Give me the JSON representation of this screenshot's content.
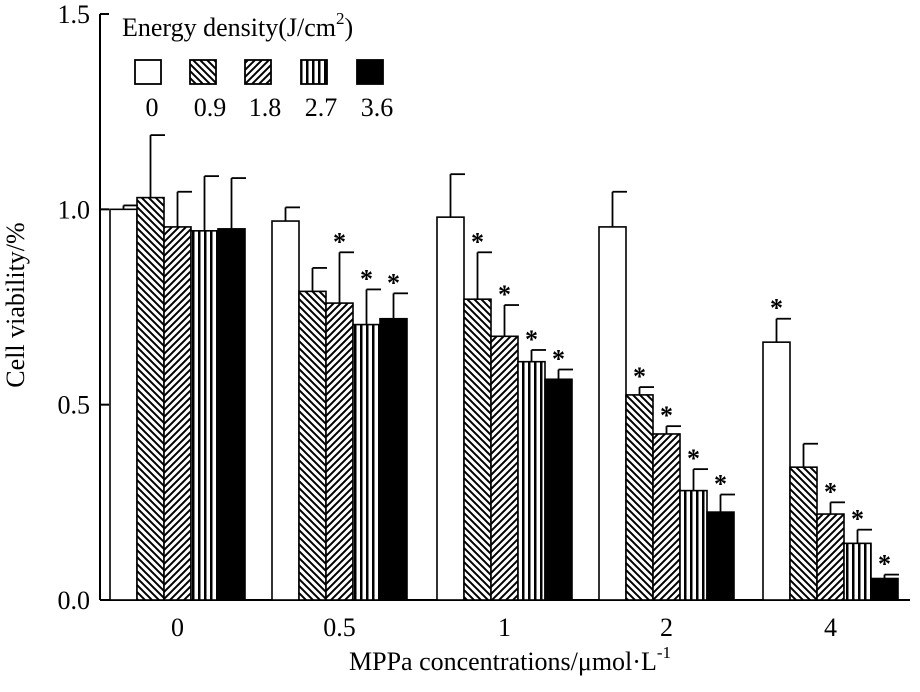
{
  "chart_data": {
    "type": "bar",
    "xlabel": "MPPa concentrations/μmol·L",
    "xlabel_superscript": "-1",
    "ylabel": "Cell viability/%",
    "ylim": [
      0,
      1.5
    ],
    "yticks": [
      0.0,
      0.5,
      1.0,
      1.5
    ],
    "ytick_labels": [
      "0.0",
      "0.5",
      "1.0",
      "1.5"
    ],
    "categories": [
      "0",
      "0.5",
      "1",
      "2",
      "4"
    ],
    "legend": {
      "title": "Energy density(J/cm",
      "title_superscript": "2",
      "title_suffix": ")",
      "position": "top-left"
    },
    "series": [
      {
        "name": "0",
        "pattern": "white",
        "values": [
          1.0,
          0.97,
          0.98,
          0.955,
          0.66
        ],
        "errors": [
          0.01,
          0.035,
          0.11,
          0.09,
          0.06
        ],
        "significant": [
          false,
          false,
          false,
          false,
          true
        ]
      },
      {
        "name": "0.9",
        "pattern": "back-hatch",
        "values": [
          1.03,
          0.79,
          0.77,
          0.525,
          0.34
        ],
        "errors": [
          0.16,
          0.06,
          0.12,
          0.02,
          0.06
        ],
        "significant": [
          false,
          false,
          true,
          true,
          false
        ]
      },
      {
        "name": "1.8",
        "pattern": "fwd-hatch",
        "values": [
          0.955,
          0.76,
          0.675,
          0.425,
          0.22
        ],
        "errors": [
          0.09,
          0.13,
          0.08,
          0.02,
          0.03
        ],
        "significant": [
          false,
          true,
          true,
          true,
          true
        ]
      },
      {
        "name": "2.7",
        "pattern": "vertical",
        "values": [
          0.945,
          0.705,
          0.61,
          0.28,
          0.145
        ],
        "errors": [
          0.14,
          0.09,
          0.03,
          0.055,
          0.035
        ],
        "significant": [
          false,
          true,
          true,
          true,
          true
        ]
      },
      {
        "name": "3.6",
        "pattern": "black",
        "values": [
          0.95,
          0.72,
          0.565,
          0.225,
          0.055
        ],
        "errors": [
          0.13,
          0.065,
          0.025,
          0.045,
          0.01
        ],
        "significant": [
          false,
          true,
          true,
          true,
          true
        ]
      }
    ],
    "significance_marker": "*"
  }
}
